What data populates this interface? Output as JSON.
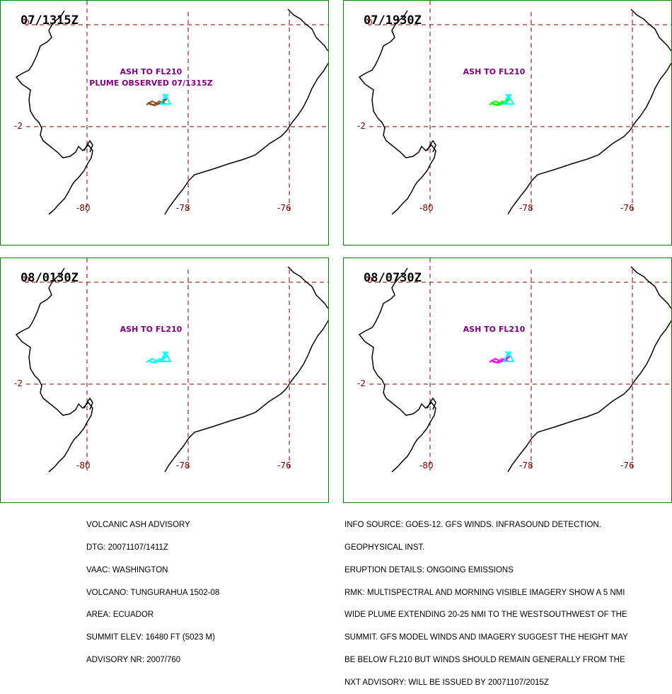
{
  "colors": {
    "frame": "#008000",
    "grid": "#800000",
    "coast": "#000000",
    "label": "#800080",
    "volcano": "#00ffff"
  },
  "panels": [
    {
      "time": "07/1315Z",
      "labels": [
        "ASH TO FL210",
        "PLUME OBSERVED 07/1315Z"
      ],
      "plume_color": "#8b4513"
    },
    {
      "time": "07/1930Z",
      "labels": [
        "ASH TO FL210"
      ],
      "plume_color": "#00ff00"
    },
    {
      "time": "08/0130Z",
      "labels": [
        "ASH TO FL210"
      ],
      "plume_color": "#00ffff"
    },
    {
      "time": "08/0730Z",
      "labels": [
        "ASH TO FL210"
      ],
      "plume_color": "#ff00ff"
    }
  ],
  "grid": {
    "lat_labels": [
      "0",
      "-2"
    ],
    "lon_labels": [
      "-80",
      "-78",
      "-76"
    ]
  },
  "advisory_left": [
    "VOLCANIC ASH ADVISORY",
    "DTG: 20071107/1411Z",
    "VAAC: WASHINGTON",
    "VOLCANO: TUNGURAHUA 1502-08",
    "AREA: ECUADOR",
    "SUMMIT ELEV: 16480 FT (5023 M)",
    "ADVISORY NR: 2007/760"
  ],
  "advisory_right": [
    "INFO SOURCE: GOES-12. GFS WINDS. INFRASOUND DETECTION.",
    "GEOPHYSICAL INST.",
    "ERUPTION DETAILS: ONGOING EMISSIONS",
    "RMK: MULTISPECTRAL AND MORNING VISIBLE IMAGERY SHOW A 5 NMI",
    "WIDE PLUME EXTENDING 20-25 NMI TO THE WESTSOUTHWEST OF THE",
    "SUMMIT. GFS MODEL WINDS AND IMAGERY SUGGEST THE HEIGHT MAY",
    "BE BELOW FL210 BUT WINDS SHOULD REMAIN GENERALLY FROM THE",
    "NXT ADVISORY: WILL BE ISSUED BY 20071107/2015Z"
  ]
}
